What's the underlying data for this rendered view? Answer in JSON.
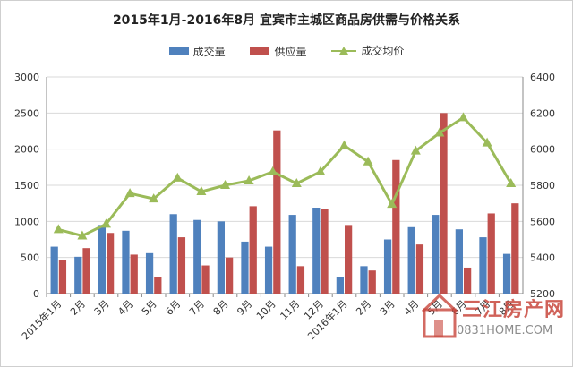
{
  "chart_data": {
    "type": "bar+line",
    "title": "2015年1月-2016年8月 宜宾市主城区商品房供需与价格关系",
    "categories": [
      "2015年1月",
      "2月",
      "3月",
      "4月",
      "5月",
      "6月",
      "7月",
      "8月",
      "9月",
      "10月",
      "11月",
      "12月",
      "2016年1月",
      "2月",
      "3月",
      "4月",
      "5月",
      "6月",
      "7月",
      "8月"
    ],
    "series": [
      {
        "name": "成交量",
        "kind": "bar",
        "axis": "left",
        "color": "#4f81bd",
        "values": [
          650,
          510,
          950,
          870,
          560,
          1100,
          1020,
          1000,
          720,
          650,
          1090,
          1190,
          230,
          380,
          750,
          920,
          1090,
          890,
          780,
          550
        ]
      },
      {
        "name": "供应量",
        "kind": "bar",
        "axis": "left",
        "color": "#c0504d",
        "values": [
          460,
          630,
          840,
          540,
          230,
          780,
          390,
          500,
          1210,
          2260,
          380,
          1170,
          950,
          320,
          1850,
          680,
          2500,
          360,
          1110,
          1250
        ]
      },
      {
        "name": "成交均价",
        "kind": "line",
        "axis": "right",
        "color": "#9bbb59",
        "values": [
          5555,
          5520,
          5585,
          5755,
          5725,
          5840,
          5765,
          5800,
          5825,
          5875,
          5810,
          5875,
          6020,
          5930,
          5695,
          5990,
          6090,
          6175,
          6035,
          5810
        ]
      }
    ],
    "y_left": {
      "min": 0,
      "max": 3000,
      "step": 500,
      "ticks": [
        "0",
        "500",
        "1000",
        "1500",
        "2000",
        "2500",
        "3000"
      ]
    },
    "y_right": {
      "min": 5200,
      "max": 6400,
      "step": 200,
      "ticks": [
        "5200",
        "5400",
        "5600",
        "5800",
        "6000",
        "6200",
        "6400"
      ]
    },
    "legend_position": "top",
    "grid": "horizontal"
  },
  "watermark": {
    "name": "三江房产网",
    "site": "0831HOME.COM"
  }
}
